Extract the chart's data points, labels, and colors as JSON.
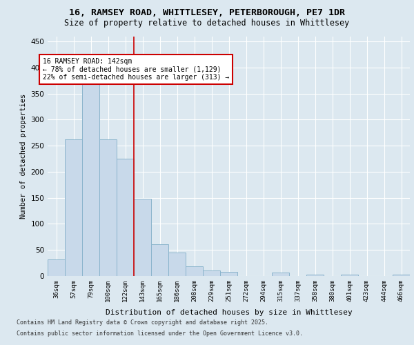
{
  "title_line1": "16, RAMSEY ROAD, WHITTLESEY, PETERBOROUGH, PE7 1DR",
  "title_line2": "Size of property relative to detached houses in Whittlesey",
  "xlabel": "Distribution of detached houses by size in Whittlesey",
  "ylabel": "Number of detached properties",
  "bar_labels": [
    "36sqm",
    "57sqm",
    "79sqm",
    "100sqm",
    "122sqm",
    "143sqm",
    "165sqm",
    "186sqm",
    "208sqm",
    "229sqm",
    "251sqm",
    "272sqm",
    "294sqm",
    "315sqm",
    "337sqm",
    "358sqm",
    "380sqm",
    "401sqm",
    "423sqm",
    "444sqm",
    "466sqm"
  ],
  "bar_values": [
    32,
    262,
    368,
    262,
    225,
    148,
    61,
    45,
    18,
    10,
    8,
    0,
    0,
    6,
    0,
    3,
    0,
    2,
    0,
    0,
    3
  ],
  "bar_color": "#c8d9ea",
  "bar_edge_color": "#8ab4cc",
  "vline_x": 4.5,
  "vline_color": "#cc0000",
  "annotation_text": "16 RAMSEY ROAD: 142sqm\n← 78% of detached houses are smaller (1,129)\n22% of semi-detached houses are larger (313) →",
  "annotation_box_color": "#ffffff",
  "annotation_box_edge": "#cc0000",
  "ylim": [
    0,
    460
  ],
  "yticks": [
    0,
    50,
    100,
    150,
    200,
    250,
    300,
    350,
    400,
    450
  ],
  "fig_bg_color": "#dce8f0",
  "plot_bg_color": "#dce8f0",
  "footer_line1": "Contains HM Land Registry data © Crown copyright and database right 2025.",
  "footer_line2": "Contains public sector information licensed under the Open Government Licence v3.0.",
  "title_fontsize": 9.5,
  "subtitle_fontsize": 8.5,
  "annotation_fontsize": 7.0,
  "footer_fontsize": 6.0,
  "ylabel_fontsize": 7.5,
  "xlabel_fontsize": 8.0,
  "tick_fontsize": 6.5,
  "ytick_fontsize": 7.5
}
